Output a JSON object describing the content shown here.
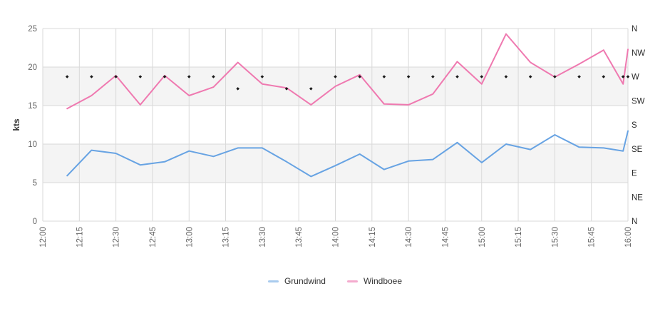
{
  "chart_data": {
    "type": "line",
    "title": "",
    "ylabel": "kts",
    "ylim": [
      0,
      25
    ],
    "y_tick_values": [
      0,
      5,
      10,
      15,
      20,
      25
    ],
    "x_tick_labels": [
      "12:00",
      "12:15",
      "12:30",
      "12:45",
      "13:00",
      "13:15",
      "13:30",
      "13:45",
      "14:00",
      "14:15",
      "14:30",
      "14:45",
      "15:00",
      "15:15",
      "15:30",
      "15:45",
      "16:00"
    ],
    "x_range_minutes": [
      0,
      240
    ],
    "x_tick_step_minutes": 15,
    "right_axis_labels_top_to_bottom": [
      "N",
      "NW",
      "W",
      "SW",
      "S",
      "SE",
      "E",
      "NE",
      "N"
    ],
    "x": [
      "12:10",
      "12:20",
      "12:30",
      "12:40",
      "12:50",
      "13:00",
      "13:10",
      "13:20",
      "13:30",
      "13:40",
      "13:50",
      "14:00",
      "14:10",
      "14:20",
      "14:30",
      "14:40",
      "14:50",
      "15:00",
      "15:10",
      "15:20",
      "15:30",
      "15:40",
      "15:50",
      "15:58",
      "16:00"
    ],
    "x_minutes": [
      10,
      20,
      30,
      40,
      50,
      60,
      70,
      80,
      90,
      100,
      110,
      120,
      130,
      140,
      150,
      160,
      170,
      180,
      190,
      200,
      210,
      220,
      230,
      238,
      240
    ],
    "series": [
      {
        "name": "Grundwind",
        "color": "#67a3e3",
        "legend_color": "#a9cbee",
        "values": [
          5.9,
          9.2,
          8.8,
          7.3,
          7.7,
          9.1,
          8.4,
          9.5,
          9.5,
          7.7,
          5.8,
          7.2,
          8.7,
          6.7,
          7.8,
          8.0,
          10.2,
          7.6,
          10.0,
          9.3,
          11.2,
          9.6,
          9.5,
          9.1,
          11.7
        ]
      },
      {
        "name": "Windboee",
        "color": "#ef79b0",
        "legend_color": "#f4abce",
        "values": [
          14.6,
          16.3,
          18.9,
          15.1,
          18.9,
          16.3,
          17.4,
          20.6,
          17.8,
          17.3,
          15.1,
          17.5,
          19.0,
          15.2,
          15.1,
          16.5,
          20.7,
          17.8,
          24.3,
          20.6,
          18.7,
          20.4,
          22.2,
          17.8,
          22.3
        ]
      }
    ],
    "wind_direction_markers": {
      "marker": "diamond",
      "color": "#1a1a1a",
      "values": [
        "W",
        "W",
        "W",
        "W",
        "W",
        "W",
        "W",
        "WSW",
        "W",
        "WSW",
        "WSW",
        "W",
        "W",
        "W",
        "W",
        "W",
        "W",
        "W",
        "W",
        "W",
        "W",
        "W",
        "W",
        "W",
        "W"
      ]
    },
    "grid": true,
    "band_fill_color": "#f4f4f4",
    "grid_color": "#d9d9d9",
    "tick_label_color": "#666666",
    "right_label_color": "#2b2b2b",
    "legend_position": "bottom"
  },
  "legend": {
    "items": [
      {
        "label": "Grundwind"
      },
      {
        "label": "Windboee"
      }
    ]
  }
}
